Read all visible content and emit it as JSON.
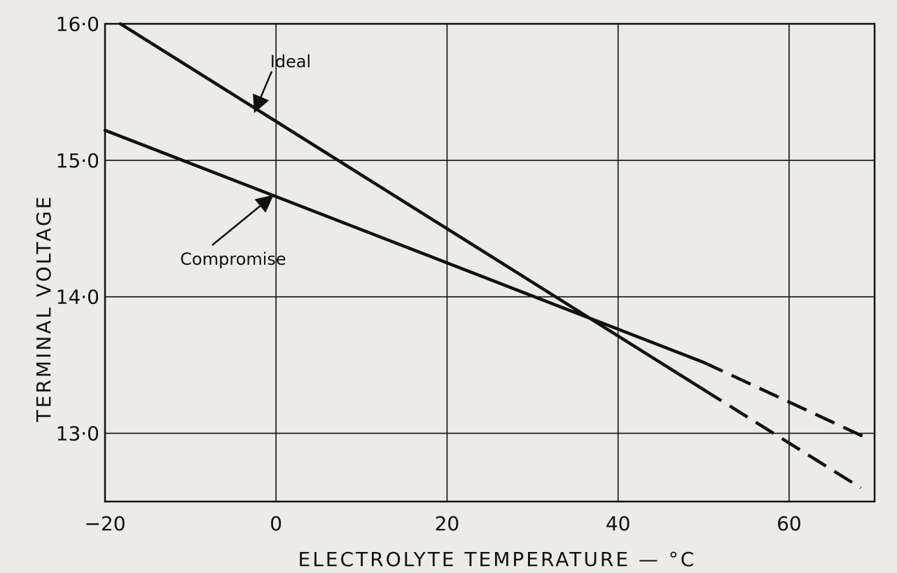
{
  "chart_data": {
    "type": "line",
    "title": "",
    "xlabel": "ELECTROLYTE  TEMPERATURE — °C",
    "ylabel": "TERMINAL  VOLTAGE",
    "xlim": [
      -20,
      70
    ],
    "ylim": [
      12.5,
      16.0
    ],
    "xticks": [
      -20,
      0,
      20,
      40,
      60
    ],
    "yticks": [
      13.0,
      14.0,
      15.0,
      16.0
    ],
    "xtick_labels": [
      "−20",
      "0",
      "20",
      "40",
      "60"
    ],
    "ytick_labels": [
      "13·0",
      "14·0",
      "15·0",
      "16·0"
    ],
    "grid": true,
    "series": [
      {
        "name": "Ideal",
        "solid": {
          "x": [
            -18.2,
            50
          ],
          "y": [
            16.0,
            13.32
          ]
        },
        "dashed": {
          "x": [
            50,
            68.4
          ],
          "y": [
            13.32,
            12.6
          ]
        }
      },
      {
        "name": "Compromise",
        "solid": {
          "x": [
            -20,
            50
          ],
          "y": [
            15.22,
            13.52
          ]
        },
        "dashed": {
          "x": [
            50,
            69.6
          ],
          "y": [
            13.52,
            12.95
          ]
        }
      }
    ],
    "annotations": [
      {
        "text": "Ideal",
        "arrow_to": {
          "x": -2.4,
          "y": 15.37
        }
      },
      {
        "text": "Compromise",
        "arrow_to": {
          "x": -0.6,
          "y": 14.73
        }
      }
    ]
  },
  "colors": {
    "background": "#ecebe7",
    "ink": "#111111"
  }
}
